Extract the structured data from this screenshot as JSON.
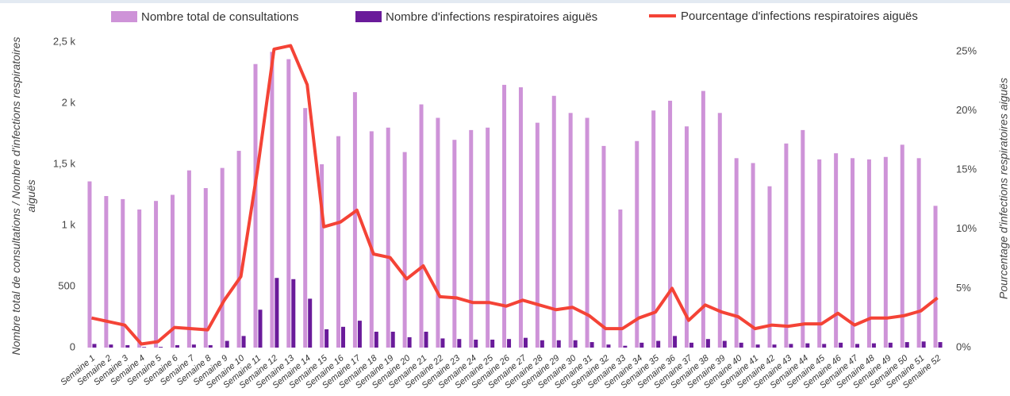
{
  "chart_data": {
    "type": "bar",
    "categories": [
      "Semaine 1",
      "Semaine 2",
      "Semaine 3",
      "Semaine 4",
      "Semaine 5",
      "Semaine 6",
      "Semaine 7",
      "Semaine 8",
      "Semaine 9",
      "Semaine 10",
      "Semaine 11",
      "Semaine 12",
      "Semaine 13",
      "Semaine 14",
      "Semaine 15",
      "Semaine 16",
      "Semaine 17",
      "Semaine 18",
      "Semaine 19",
      "Semaine 20",
      "Semaine 21",
      "Semaine 22",
      "Semaine 23",
      "Semaine 24",
      "Semaine 25",
      "Semaine 26",
      "Semaine 27",
      "Semaine 28",
      "Semaine 29",
      "Semaine 30",
      "Semaine 31",
      "Semaine 32",
      "Semaine 33",
      "Semaine 34",
      "Semaine 35",
      "Semaine 36",
      "Semaine 37",
      "Semaine 38",
      "Semaine 39",
      "Semaine 40",
      "Semaine 41",
      "Semaine 42",
      "Semaine 43",
      "Semaine 44",
      "Semaine 45",
      "Semaine 46",
      "Semaine 47",
      "Semaine 48",
      "Semaine 49",
      "Semaine 50",
      "Semaine 51",
      "Semaine 52"
    ],
    "series": [
      {
        "name": "Nombre total de consultations",
        "type": "bar",
        "color": "#ce93d8",
        "values": [
          1360,
          1240,
          1215,
          1130,
          1200,
          1250,
          1450,
          1305,
          1470,
          1610,
          2320,
          2420,
          2360,
          1960,
          1500,
          1730,
          2090,
          1770,
          1800,
          1600,
          1990,
          1880,
          1700,
          1780,
          1800,
          2150,
          2130,
          1840,
          2060,
          1920,
          1880,
          1650,
          1130,
          1690,
          1940,
          2020,
          1810,
          2100,
          1920,
          1550,
          1510,
          1320,
          1670,
          1780,
          1540,
          1590,
          1550,
          1540,
          1560,
          1660,
          1550,
          1160
        ]
      },
      {
        "name": "Nombre d'infections respiratoires aiguës",
        "type": "bar",
        "color": "#6a1b9a",
        "values": [
          30,
          25,
          20,
          5,
          6,
          20,
          25,
          20,
          55,
          95,
          310,
          570,
          560,
          400,
          150,
          170,
          220,
          130,
          130,
          85,
          130,
          75,
          70,
          65,
          65,
          70,
          80,
          60,
          60,
          60,
          45,
          25,
          15,
          40,
          55,
          95,
          40,
          70,
          55,
          40,
          25,
          25,
          30,
          35,
          30,
          40,
          30,
          35,
          40,
          45,
          50,
          45
        ]
      },
      {
        "name": "Pourcentage d'infections respiratoires aiguës",
        "type": "line",
        "axis": "y2",
        "color": "#f44336",
        "values": [
          2.5,
          2.2,
          1.9,
          0.3,
          0.5,
          1.7,
          1.6,
          1.5,
          4.0,
          6.0,
          15,
          25.2,
          25.5,
          22.2,
          10.2,
          10.6,
          11.6,
          7.9,
          7.6,
          5.8,
          6.9,
          4.3,
          4.2,
          3.8,
          3.8,
          3.5,
          4.0,
          3.6,
          3.2,
          3.4,
          2.7,
          1.6,
          1.6,
          2.5,
          3.0,
          5.0,
          2.3,
          3.6,
          3.0,
          2.6,
          1.6,
          1.9,
          1.8,
          2.0,
          2.0,
          2.9,
          1.9,
          2.5,
          2.5,
          2.7,
          3.1,
          4.2
        ]
      }
    ],
    "y_label": "Nombre total de consultations / Nombre d'infections respiratoires aiguës",
    "y2_label": "Pourcentage d'infections respiratoires aiguës",
    "ylim": [
      0,
      2500
    ],
    "yticks": [
      0,
      500,
      {
        "value": 1000,
        "label": "1 k"
      },
      {
        "value": 1500,
        "label": "1,5 k"
      },
      {
        "value": 2000,
        "label": "2 k"
      },
      {
        "value": 2500,
        "label": "2,5 k"
      }
    ],
    "y2lim": [
      0,
      25.8
    ],
    "y2ticks": [
      {
        "value": 0,
        "label": "0%"
      },
      {
        "value": 5,
        "label": "5%"
      },
      {
        "value": 10,
        "label": "10%"
      },
      {
        "value": 15,
        "label": "15%"
      },
      {
        "value": 20,
        "label": "20%"
      },
      {
        "value": 25,
        "label": "25%"
      }
    ],
    "legend": "top"
  }
}
